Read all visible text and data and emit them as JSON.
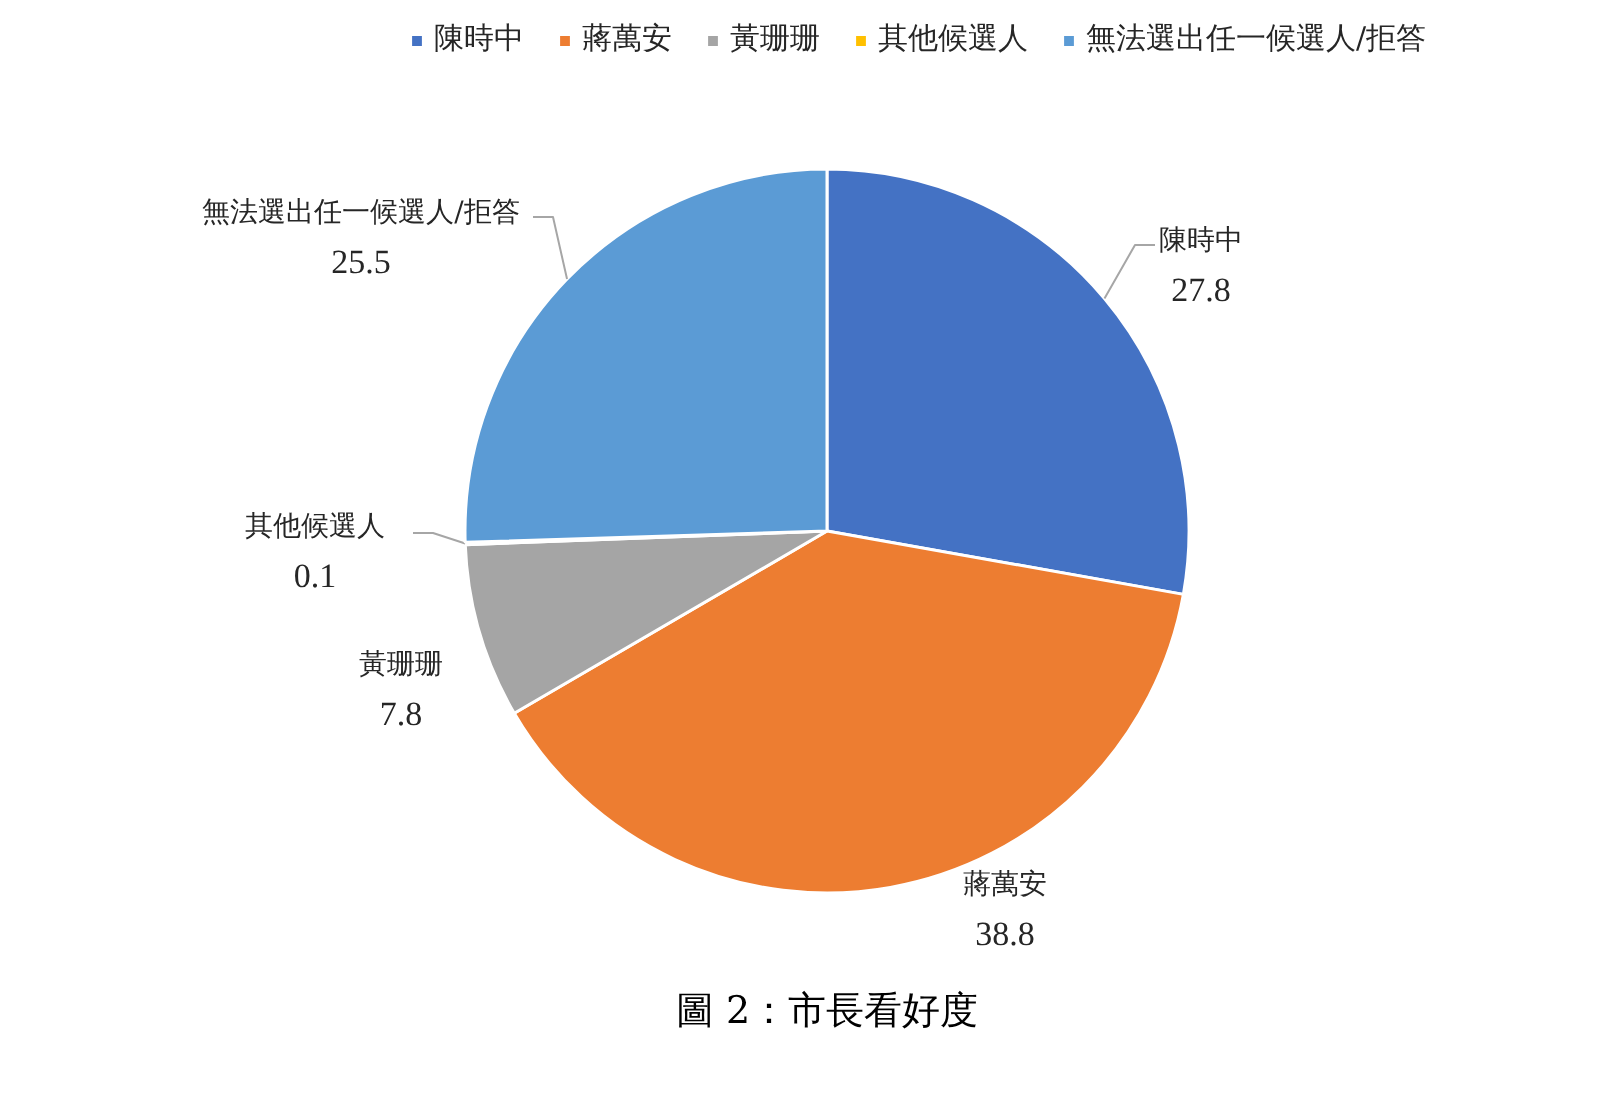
{
  "chart_data": {
    "type": "pie",
    "categories": [
      "陳時中",
      "蔣萬安",
      "黃珊珊",
      "其他候選人",
      "無法選出任一候選人/拒答"
    ],
    "values": [
      27.8,
      38.8,
      7.8,
      0.1,
      25.5
    ],
    "colors": [
      "#4472c4",
      "#ed7d31",
      "#a5a5a5",
      "#ffc000",
      "#5b9bd5"
    ],
    "data_labels": true,
    "legend": "top",
    "annotations": [
      "圖 2：市長看好度"
    ]
  }
}
